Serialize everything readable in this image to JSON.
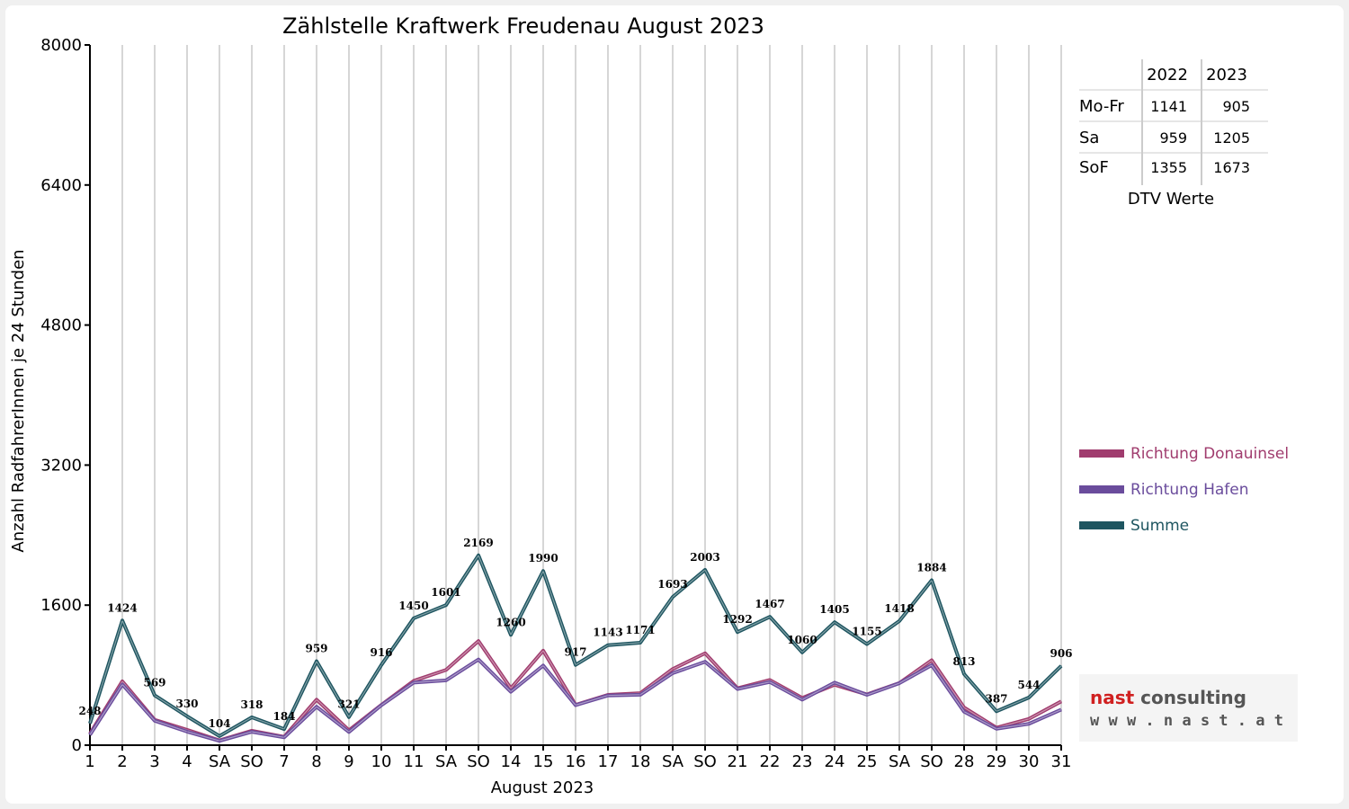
{
  "chart_data": {
    "type": "line",
    "title": "Zählstelle Kraftwerk Freudenau August 2023",
    "xlabel": "August 2023",
    "ylabel": "Anzahl RadfahrerInnen je 24 Stunden",
    "ylim": [
      0,
      8000
    ],
    "yticks": [
      "0",
      "1600",
      "3200",
      "4800",
      "6400",
      "8000"
    ],
    "grid": "vertical",
    "legend_position": "right",
    "categories": [
      "1",
      "2",
      "3",
      "4",
      "SA",
      "SO",
      "7",
      "8",
      "9",
      "10",
      "11",
      "SA",
      "SO",
      "14",
      "15",
      "16",
      "17",
      "18",
      "SA",
      "SO",
      "21",
      "22",
      "23",
      "24",
      "25",
      "SA",
      "SO",
      "28",
      "29",
      "30",
      "31"
    ],
    "highlight_categories": [
      5,
      12,
      14,
      19,
      26
    ],
    "highlight_color": "#e00000",
    "series": [
      {
        "name": "Richtung Donauinsel",
        "color": "#a03c6e",
        "values": [
          130,
          730,
          290,
          175,
          55,
          165,
          95,
          520,
          170,
          460,
          735,
          860,
          1190,
          650,
          1080,
          460,
          575,
          595,
          870,
          1050,
          650,
          745,
          540,
          690,
          580,
          710,
          970,
          430,
          200,
          300,
          500
        ]
      },
      {
        "name": "Richtung Hafen",
        "color": "#6a4c9c",
        "values": [
          118,
          694,
          279,
          155,
          49,
          153,
          89,
          439,
          151,
          456,
          715,
          741,
          979,
          610,
          910,
          457,
          568,
          576,
          823,
          953,
          642,
          722,
          520,
          715,
          575,
          708,
          914,
          383,
          187,
          244,
          406
        ]
      },
      {
        "name": "Summe",
        "color": "#1e5560",
        "values": [
          248,
          1424,
          569,
          330,
          104,
          318,
          184,
          959,
          321,
          916,
          1450,
          1601,
          2169,
          1260,
          1990,
          917,
          1143,
          1171,
          1693,
          2003,
          1292,
          1467,
          1060,
          1405,
          1155,
          1418,
          1884,
          813,
          387,
          544,
          906
        ]
      }
    ],
    "data_labels": [
      "248",
      "1424",
      "569",
      "330",
      "104",
      "318",
      "184",
      "959",
      "321",
      "916",
      "1450",
      "1601",
      "2169",
      "1260",
      "1990",
      "917",
      "1143",
      "1171",
      "1693",
      "2003",
      "1292",
      "1467",
      "1060",
      "1405",
      "1155",
      "1418",
      "1884",
      "813",
      "387",
      "544",
      "906"
    ],
    "dtv_table": {
      "caption": "DTV Werte",
      "headers": [
        "",
        "2022",
        "2023"
      ],
      "rows": [
        {
          "label": "Mo-Fr",
          "v2022": "1141",
          "v2023": "905"
        },
        {
          "label": "Sa",
          "v2022": "959",
          "v2023": "1205"
        },
        {
          "label": "SoF",
          "v2022": "1355",
          "v2023": "1673"
        }
      ]
    }
  },
  "logo": {
    "line1_part1": "nast",
    "line1_part2": "consulting",
    "line2": "w w w . n a s t . a t",
    "color_red": "#d02020",
    "color_gray": "#555555"
  }
}
